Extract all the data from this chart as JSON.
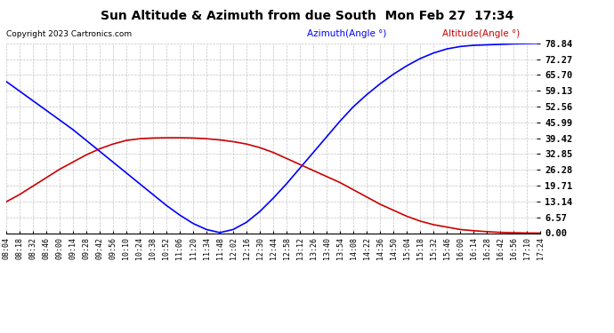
{
  "title": "Sun Altitude & Azimuth from due South  Mon Feb 27  17:34",
  "copyright": "Copyright 2023 Cartronics.com",
  "legend_azimuth": "Azimuth(Angle °)",
  "legend_altitude": "Altitude(Angle °)",
  "azimuth_color": "#0000ff",
  "altitude_color": "#cc0000",
  "background_color": "#ffffff",
  "grid_color": "#aaaaaa",
  "ymin": 0.0,
  "ymax": 78.84,
  "ytick_step": 6.57,
  "x_labels": [
    "08:04",
    "08:18",
    "08:32",
    "08:46",
    "09:00",
    "09:14",
    "09:28",
    "09:42",
    "09:56",
    "10:10",
    "10:24",
    "10:38",
    "10:52",
    "11:06",
    "11:20",
    "11:34",
    "11:48",
    "12:02",
    "12:16",
    "12:30",
    "12:44",
    "12:58",
    "13:12",
    "13:26",
    "13:40",
    "13:54",
    "14:08",
    "14:22",
    "14:36",
    "14:50",
    "15:04",
    "15:18",
    "15:32",
    "15:46",
    "16:00",
    "16:14",
    "16:28",
    "16:42",
    "16:56",
    "17:10",
    "17:24"
  ],
  "azimuth_values": [
    63.0,
    59.0,
    55.0,
    51.0,
    47.0,
    43.0,
    38.5,
    34.0,
    29.5,
    25.0,
    20.5,
    16.0,
    11.5,
    7.5,
    4.0,
    1.5,
    0.2,
    1.5,
    4.5,
    9.0,
    14.5,
    20.5,
    27.0,
    33.5,
    40.0,
    46.5,
    52.5,
    57.5,
    62.0,
    66.0,
    69.5,
    72.5,
    74.8,
    76.5,
    77.5,
    78.0,
    78.2,
    78.4,
    78.6,
    78.7,
    78.84
  ],
  "altitude_values": [
    13.0,
    16.0,
    19.5,
    23.0,
    26.5,
    29.5,
    32.5,
    35.0,
    37.0,
    38.5,
    39.2,
    39.5,
    39.6,
    39.6,
    39.5,
    39.2,
    38.7,
    38.0,
    37.0,
    35.5,
    33.5,
    31.0,
    28.5,
    26.0,
    23.5,
    21.0,
    18.0,
    15.0,
    12.0,
    9.5,
    7.0,
    5.0,
    3.5,
    2.5,
    1.5,
    1.0,
    0.6,
    0.3,
    0.15,
    0.05,
    0.0
  ]
}
